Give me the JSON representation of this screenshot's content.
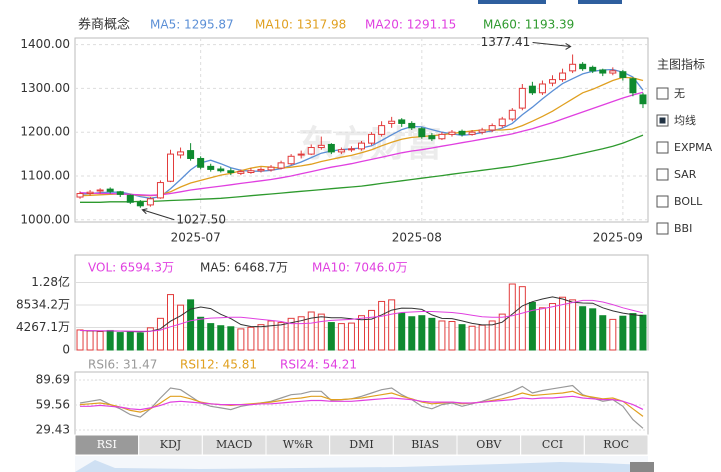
{
  "chart_data": [
    {
      "type": "candlestick",
      "title": "券商概念",
      "watermark": "东方财富",
      "open": [
        1052,
        1060,
        1066,
        1070,
        1064,
        1056,
        1040,
        1034,
        1050,
        1088,
        1148,
        1158,
        1140,
        1122,
        1116,
        1112,
        1106,
        1108,
        1112,
        1114,
        1118,
        1128,
        1148,
        1150,
        1165,
        1172,
        1155,
        1160,
        1162,
        1175,
        1195,
        1220,
        1228,
        1220,
        1208,
        1192,
        1185,
        1195,
        1202,
        1195,
        1200,
        1205,
        1215,
        1230,
        1255,
        1305,
        1290,
        1312,
        1320,
        1340,
        1355,
        1348,
        1342,
        1335,
        1338,
        1322,
        1285
      ],
      "high": [
        1065,
        1068,
        1072,
        1074,
        1066,
        1058,
        1045,
        1052,
        1090,
        1160,
        1165,
        1175,
        1145,
        1128,
        1122,
        1118,
        1115,
        1118,
        1120,
        1125,
        1135,
        1150,
        1158,
        1172,
        1190,
        1175,
        1165,
        1168,
        1180,
        1200,
        1225,
        1235,
        1232,
        1225,
        1212,
        1198,
        1200,
        1205,
        1206,
        1205,
        1210,
        1220,
        1235,
        1255,
        1310,
        1315,
        1318,
        1330,
        1345,
        1377.41,
        1360,
        1352,
        1345,
        1348,
        1342,
        1325,
        1290
      ],
      "low": [
        1048,
        1055,
        1060,
        1060,
        1052,
        1036,
        1027.5,
        1030,
        1048,
        1086,
        1140,
        1135,
        1115,
        1110,
        1108,
        1102,
        1102,
        1105,
        1108,
        1110,
        1115,
        1125,
        1140,
        1148,
        1160,
        1150,
        1150,
        1155,
        1158,
        1170,
        1190,
        1210,
        1212,
        1205,
        1185,
        1180,
        1182,
        1190,
        1190,
        1192,
        1195,
        1200,
        1210,
        1225,
        1250,
        1285,
        1285,
        1305,
        1315,
        1335,
        1340,
        1335,
        1328,
        1330,
        1318,
        1282,
        1255
      ],
      "close": [
        1060,
        1063,
        1068,
        1065,
        1058,
        1040,
        1032,
        1048,
        1085,
        1150,
        1155,
        1140,
        1120,
        1115,
        1112,
        1108,
        1110,
        1112,
        1115,
        1120,
        1130,
        1145,
        1150,
        1165,
        1170,
        1155,
        1160,
        1162,
        1175,
        1195,
        1215,
        1225,
        1220,
        1210,
        1190,
        1185,
        1195,
        1200,
        1195,
        1200,
        1205,
        1215,
        1230,
        1250,
        1300,
        1290,
        1310,
        1320,
        1335,
        1355,
        1345,
        1340,
        1335,
        1340,
        1325,
        1290,
        1265
      ],
      "up_color": "#e23b3b",
      "down_color": "#0f8a2f",
      "series": [
        {
          "name": "MA5: 1295.87",
          "color": "#5b8fd6",
          "values": [
            1058,
            1060,
            1062,
            1063,
            1063,
            1059,
            1053,
            1049,
            1053,
            1071,
            1092,
            1114,
            1130,
            1136,
            1128,
            1119,
            1113,
            1111,
            1111,
            1113,
            1117,
            1124,
            1132,
            1142,
            1152,
            1157,
            1160,
            1162,
            1164,
            1169,
            1181,
            1194,
            1206,
            1213,
            1212,
            1206,
            1200,
            1196,
            1193,
            1195,
            1199,
            1203,
            1209,
            1220,
            1240,
            1257,
            1276,
            1294,
            1311,
            1322,
            1333,
            1339,
            1342,
            1343,
            1337,
            1326,
            1295.87
          ]
        },
        {
          "name": "MA10: 1317.98",
          "color": "#e0a020",
          "values": [
            1055,
            1056,
            1057,
            1058,
            1059,
            1058,
            1056,
            1055,
            1057,
            1064,
            1075,
            1084,
            1090,
            1096,
            1102,
            1106,
            1112,
            1118,
            1122,
            1120,
            1118,
            1120,
            1123,
            1127,
            1133,
            1138,
            1143,
            1147,
            1153,
            1160,
            1169,
            1177,
            1184,
            1188,
            1190,
            1192,
            1194,
            1197,
            1200,
            1203,
            1205,
            1205,
            1205,
            1207,
            1215,
            1225,
            1236,
            1248,
            1262,
            1276,
            1290,
            1298,
            1308,
            1318,
            1325,
            1324,
            1317.98
          ]
        },
        {
          "name": "MA20: 1291.15",
          "color": "#e040e0",
          "values": [
            1062,
            1061,
            1060,
            1060,
            1059,
            1058,
            1057,
            1056,
            1057,
            1060,
            1064,
            1068,
            1071,
            1074,
            1077,
            1080,
            1083,
            1086,
            1089,
            1092,
            1096,
            1100,
            1105,
            1110,
            1115,
            1120,
            1124,
            1128,
            1133,
            1138,
            1143,
            1148,
            1153,
            1157,
            1160,
            1164,
            1168,
            1172,
            1176,
            1180,
            1184,
            1188,
            1192,
            1196,
            1202,
            1208,
            1215,
            1222,
            1230,
            1238,
            1246,
            1254,
            1262,
            1270,
            1278,
            1285,
            1291.15
          ]
        },
        {
          "name": "MA60: 1193.39",
          "color": "#2e9a2e",
          "values": [
            1040,
            1040,
            1040,
            1041,
            1041,
            1041,
            1042,
            1042,
            1043,
            1044,
            1045,
            1046,
            1047,
            1048,
            1049,
            1051,
            1053,
            1055,
            1057,
            1059,
            1061,
            1063,
            1065,
            1067,
            1069,
            1071,
            1073,
            1075,
            1077,
            1080,
            1083,
            1086,
            1089,
            1092,
            1095,
            1098,
            1101,
            1104,
            1107,
            1110,
            1113,
            1116,
            1119,
            1122,
            1126,
            1130,
            1134,
            1138,
            1142,
            1147,
            1152,
            1157,
            1162,
            1168,
            1175,
            1184,
            1193.39
          ]
        }
      ],
      "ylim": [
        995,
        1415
      ],
      "yticks": [
        {
          "value": 1000,
          "label": "1000.00"
        },
        {
          "value": 1100,
          "label": "1100.00"
        },
        {
          "value": 1200,
          "label": "1200.00"
        },
        {
          "value": 1300,
          "label": "1300.00"
        },
        {
          "value": 1400,
          "label": "1400.00"
        }
      ],
      "xticks": [
        {
          "value": 12,
          "label": "2025-07"
        },
        {
          "value": 34,
          "label": "2025-08"
        },
        {
          "value": 54,
          "label": "2025-09"
        }
      ],
      "grid": true,
      "annotations": [
        {
          "text": "1377.41"
        },
        {
          "text": "1027.50"
        }
      ]
    },
    {
      "type": "bar",
      "legend": "VOL: 6594.3万",
      "legend_color": "#e040e0",
      "values": [
        3800,
        3600,
        3500,
        3700,
        3300,
        3400,
        3200,
        4200,
        6000,
        10500,
        8500,
        9500,
        6200,
        5000,
        4600,
        4400,
        4000,
        4300,
        4800,
        5500,
        5200,
        6000,
        6300,
        7200,
        6800,
        5200,
        5000,
        5100,
        6500,
        7500,
        9200,
        9500,
        7000,
        6300,
        6500,
        6000,
        5500,
        5400,
        4800,
        4500,
        4700,
        5500,
        6800,
        12500,
        12000,
        9000,
        8000,
        8800,
        10000,
        9500,
        8200,
        7800,
        6500,
        5800,
        6400,
        6900,
        6594.3
      ],
      "series": [
        {
          "name": "MA5: 6468.7万",
          "color": "#333333",
          "values": [
            3700,
            3650,
            3600,
            3600,
            3580,
            3500,
            3420,
            3560,
            4020,
            5460,
            6480,
            7740,
            8140,
            7840,
            6760,
            5940,
            4840,
            4460,
            4420,
            4600,
            4760,
            5160,
            5560,
            6040,
            6300,
            6100,
            6100,
            5920,
            5720,
            5860,
            6660,
            7560,
            7940,
            7900,
            7700,
            6660,
            5980,
            5940,
            5520,
            5040,
            4760,
            4760,
            5260,
            6800,
            8360,
            9160,
            9660,
            10060,
            9660,
            9060,
            8900,
            8860,
            8000,
            7400,
            7000,
            6700,
            6468.7
          ]
        },
        {
          "name": "MA10: 7046.0万",
          "color": "#e040e0",
          "values": [
            3700,
            3680,
            3650,
            3630,
            3600,
            3580,
            3550,
            3560,
            3780,
            4400,
            4950,
            5560,
            5860,
            6050,
            6100,
            6200,
            6200,
            6000,
            5800,
            5600,
            5400,
            5000,
            5000,
            5100,
            5400,
            5600,
            5700,
            5800,
            6000,
            6200,
            6400,
            6800,
            7100,
            7200,
            7300,
            7300,
            7200,
            7100,
            6900,
            6600,
            6300,
            6200,
            6200,
            6500,
            7000,
            7500,
            7800,
            8200,
            8600,
            9000,
            9400,
            9400,
            9100,
            8600,
            8000,
            7500,
            7046
          ]
        }
      ],
      "ylim": [
        0,
        18000
      ],
      "yticks": [
        0,
        {
          "value": 4267.1,
          "label": "4267.1万"
        },
        {
          "value": 8534.2,
          "label": "8534.2万"
        },
        {
          "value": 12800,
          "label": "1.28亿"
        }
      ]
    },
    {
      "type": "line",
      "series": [
        {
          "name": "RSI6: 31.47",
          "color": "#999999",
          "values": [
            62,
            64,
            66,
            60,
            55,
            48,
            45,
            55,
            68,
            80,
            78,
            70,
            62,
            58,
            56,
            54,
            58,
            60,
            62,
            64,
            68,
            72,
            73,
            76,
            76,
            65,
            66,
            67,
            70,
            74,
            78,
            80,
            72,
            66,
            58,
            55,
            60,
            62,
            58,
            61,
            64,
            68,
            72,
            76,
            82,
            74,
            77,
            79,
            81,
            83,
            72,
            68,
            64,
            66,
            58,
            42,
            31.47
          ]
        },
        {
          "name": "RSI12: 45.81",
          "color": "#e0a020",
          "values": [
            60,
            61,
            62,
            60,
            57,
            53,
            51,
            55,
            62,
            70,
            70,
            67,
            63,
            61,
            60,
            59,
            60,
            61,
            62,
            63,
            65,
            67,
            68,
            70,
            70,
            66,
            66,
            67,
            68,
            70,
            72,
            74,
            70,
            67,
            63,
            61,
            62,
            63,
            61,
            62,
            63,
            65,
            67,
            70,
            74,
            71,
            72,
            73,
            74,
            76,
            71,
            69,
            67,
            68,
            64,
            55,
            45.81
          ]
        },
        {
          "name": "RSI24: 54.21",
          "color": "#e040e0",
          "values": [
            58,
            58,
            59,
            58,
            57,
            55,
            54,
            56,
            59,
            63,
            64,
            63,
            62,
            61,
            60,
            60,
            60,
            60,
            61,
            61,
            62,
            63,
            64,
            65,
            65,
            64,
            64,
            64,
            65,
            66,
            67,
            68,
            67,
            66,
            64,
            63,
            63,
            63,
            62,
            62,
            63,
            64,
            65,
            66,
            68,
            67,
            68,
            68,
            69,
            70,
            68,
            67,
            66,
            66,
            64,
            60,
            54.21
          ]
        }
      ],
      "ylim": [
        24.6,
        99.3
      ],
      "yticks": [
        29.43,
        59.56,
        89.69
      ]
    }
  ],
  "tabs": [
    "RSI",
    "KDJ",
    "MACD",
    "W%R",
    "DMI",
    "BIAS",
    "OBV",
    "CCI",
    "ROC"
  ],
  "selected_tab": 0,
  "sidebar": {
    "title": "主图指标",
    "options": [
      "无",
      "均线",
      "EXPMA",
      "SAR",
      "BOLL",
      "BBI"
    ],
    "checked": 1
  }
}
